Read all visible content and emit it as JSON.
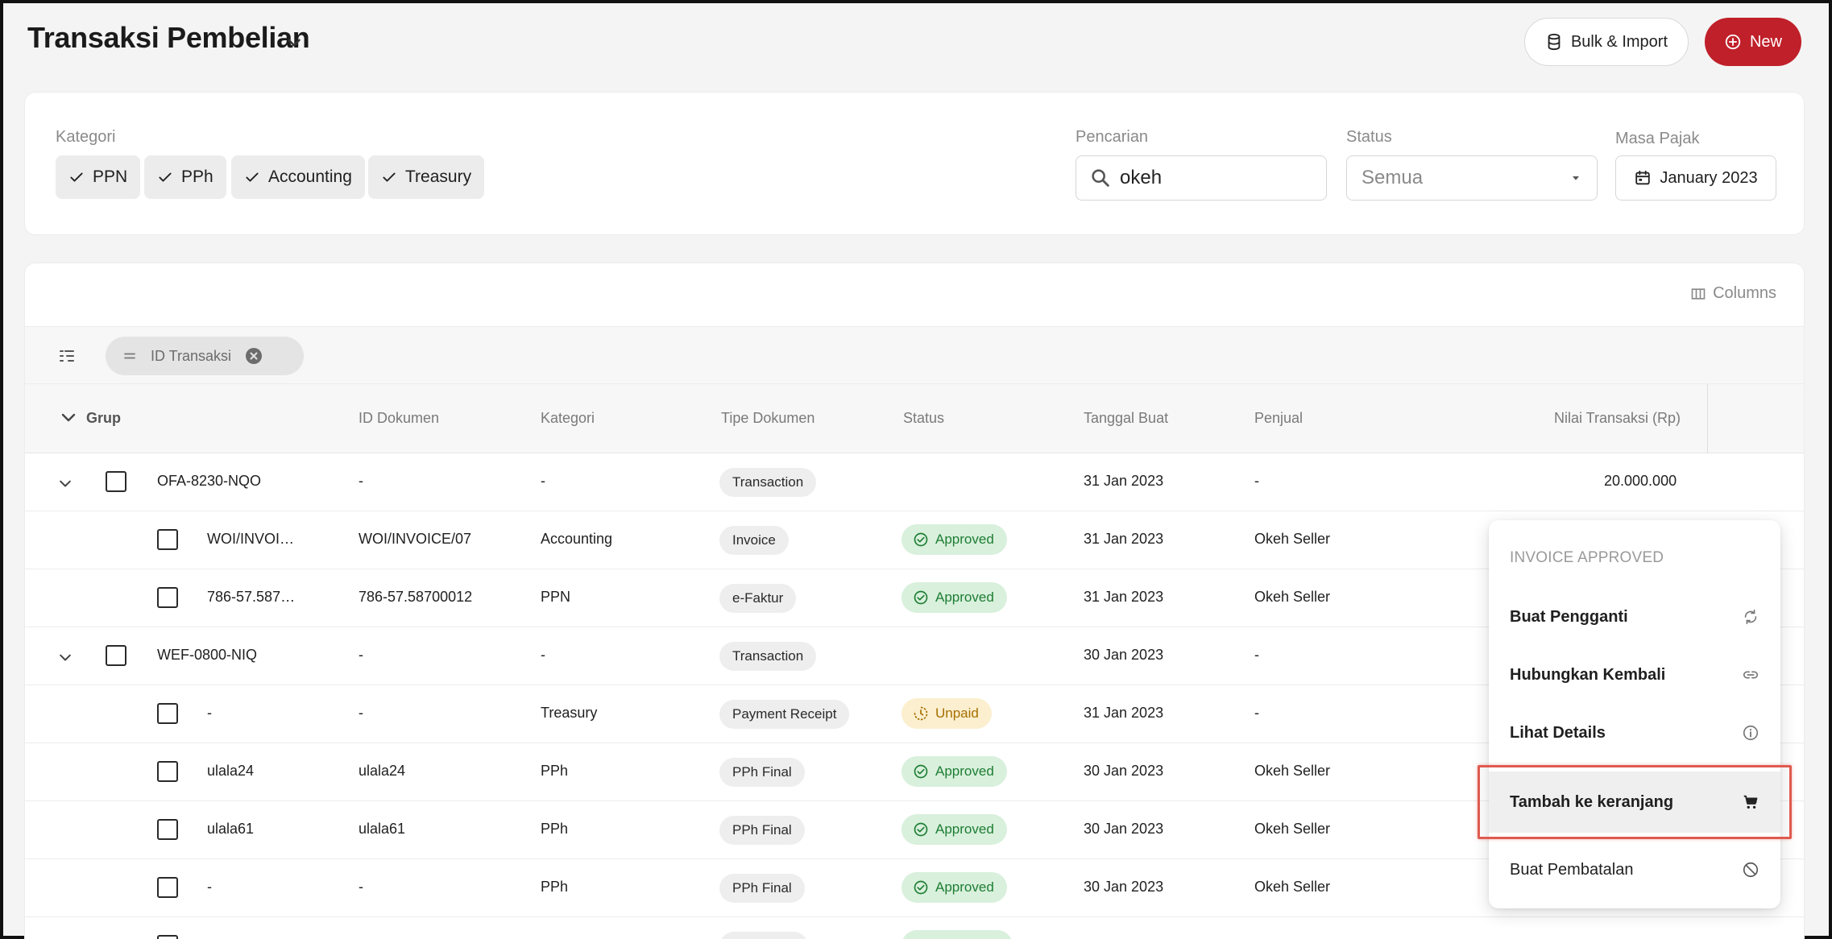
{
  "header": {
    "title": "Transaksi Pembelian",
    "bulk_label": "Bulk & Import",
    "new_label": "New"
  },
  "filters": {
    "kategori_label": "Kategori",
    "kategori_chips": [
      "PPN",
      "PPh",
      "Accounting",
      "Treasury"
    ],
    "pencarian_label": "Pencarian",
    "search_value": "okeh",
    "status_label": "Status",
    "status_value": "Semua",
    "masa_pajak_label": "Masa Pajak",
    "masa_pajak_value": "January 2023"
  },
  "table": {
    "columns_label": "Columns",
    "group_chip_label": "ID Transaksi",
    "headers": {
      "grup": "Grup",
      "id_dokumen": "ID Dokumen",
      "kategori": "Kategori",
      "tipe_dokumen": "Tipe Dokumen",
      "status": "Status",
      "tanggal_buat": "Tanggal Buat",
      "penjual": "Penjual",
      "nilai": "Nilai Transaksi (Rp)"
    },
    "rows": [
      {
        "group": "OFA-8230-NQO",
        "id_dokumen": "-",
        "kategori": "-",
        "tipe": "Transaction",
        "status": "",
        "tanggal": "31 Jan 2023",
        "penjual": "-",
        "nilai": "20.000.000"
      },
      {
        "group": "WOI/INVOI…",
        "id_dokumen": "WOI/INVOICE/07",
        "kategori": "Accounting",
        "tipe": "Invoice",
        "status": "Approved",
        "tanggal": "31 Jan 2023",
        "penjual": "Okeh Seller",
        "nilai": ""
      },
      {
        "group": "786-57.587…",
        "id_dokumen": "786-57.58700012",
        "kategori": "PPN",
        "tipe": "e-Faktur",
        "status": "Approved",
        "tanggal": "31 Jan 2023",
        "penjual": "Okeh Seller",
        "nilai": ""
      },
      {
        "group": "WEF-0800-NIQ",
        "id_dokumen": "-",
        "kategori": "-",
        "tipe": "Transaction",
        "status": "",
        "tanggal": "30 Jan 2023",
        "penjual": "-",
        "nilai": ""
      },
      {
        "group": "-",
        "id_dokumen": "-",
        "kategori": "Treasury",
        "tipe": "Payment Receipt",
        "status": "Unpaid",
        "tanggal": "31 Jan 2023",
        "penjual": "-",
        "nilai": ""
      },
      {
        "group": "ulala24",
        "id_dokumen": "ulala24",
        "kategori": "PPh",
        "tipe": "PPh Final",
        "status": "Approved",
        "tanggal": "30 Jan 2023",
        "penjual": "Okeh Seller",
        "nilai": ""
      },
      {
        "group": "ulala61",
        "id_dokumen": "ulala61",
        "kategori": "PPh",
        "tipe": "PPh Final",
        "status": "Approved",
        "tanggal": "30 Jan 2023",
        "penjual": "Okeh Seller",
        "nilai": ""
      },
      {
        "group": "-",
        "id_dokumen": "-",
        "kategori": "PPh",
        "tipe": "PPh Final",
        "status": "Approved",
        "tanggal": "30 Jan 2023",
        "penjual": "Okeh Seller",
        "nilai": ""
      }
    ]
  },
  "menu": {
    "header": "INVOICE APPROVED",
    "items": [
      {
        "label": "Buat Pengganti",
        "icon": "refresh-icon"
      },
      {
        "label": "Hubungkan Kembali",
        "icon": "link-icon"
      },
      {
        "label": "Lihat Details",
        "icon": "info-icon"
      },
      {
        "label": "Tambah ke keranjang",
        "icon": "cart-icon"
      },
      {
        "label": "Buat Pembatalan",
        "icon": "block-icon"
      }
    ]
  },
  "colors": {
    "primary": "#c0202a",
    "approved_bg": "#d8f0dc",
    "approved_text": "#1e7d33",
    "unpaid_bg": "#fbefcf",
    "unpaid_text": "#a66f00",
    "highlight": "#e05a4f"
  }
}
